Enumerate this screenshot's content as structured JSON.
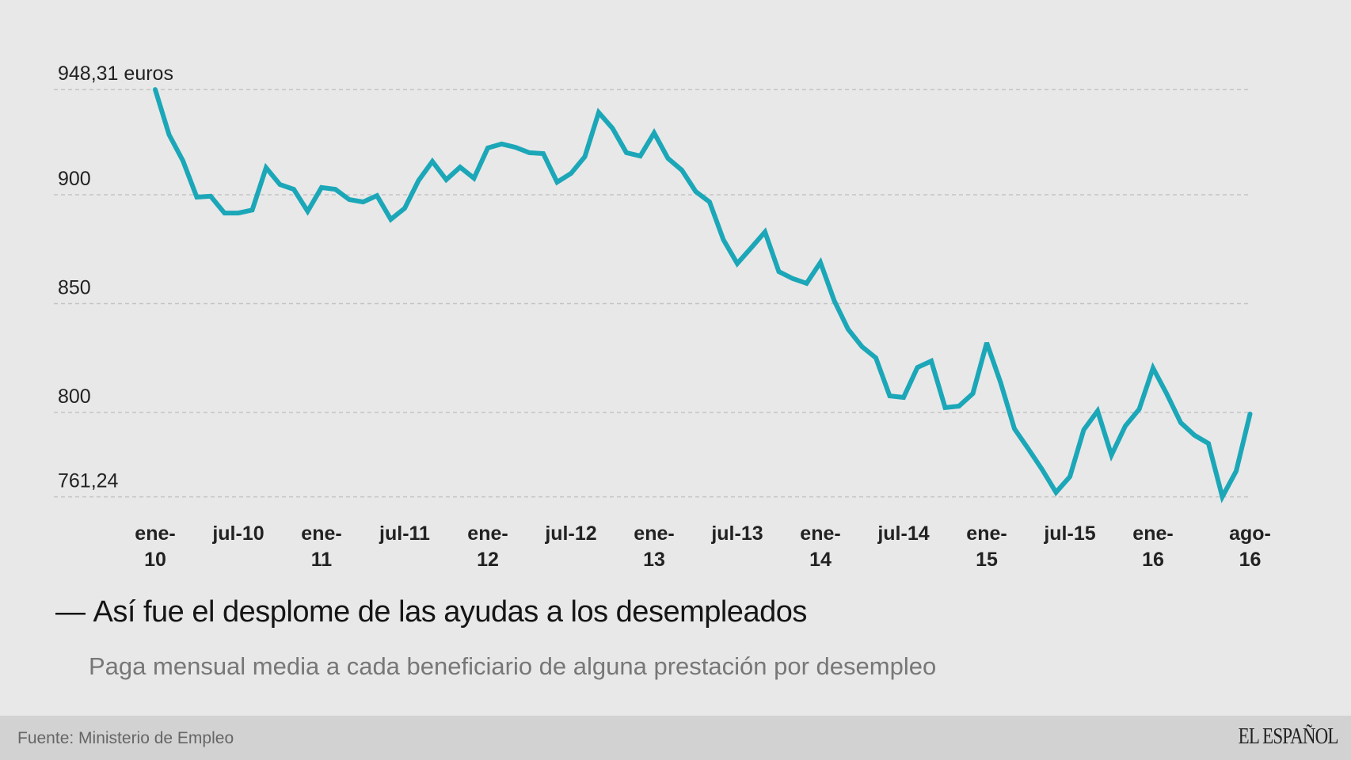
{
  "chart_data": {
    "type": "line",
    "title": "Así fue el desplome de las ayudas a los desempleados",
    "subtitle": "Paga mensual media a cada beneficiario de alguna prestación por desempleo",
    "xlabel": "",
    "ylabel": "",
    "unit": "euros",
    "ylim": [
      761.24,
      948.31
    ],
    "grid": true,
    "y_ticks": [
      {
        "value": 948.31,
        "label": "948,31 euros"
      },
      {
        "value": 900,
        "label": "900"
      },
      {
        "value": 850,
        "label": "850"
      },
      {
        "value": 800,
        "label": "800"
      },
      {
        "value": 761.24,
        "label": "761,24"
      }
    ],
    "x_start": "ene-10",
    "x_end": "ago-16",
    "x_ticks": [
      {
        "index": 0,
        "line1": "ene-",
        "line2": "10"
      },
      {
        "index": 6,
        "line1": "jul-10",
        "line2": ""
      },
      {
        "index": 12,
        "line1": "ene-",
        "line2": "11"
      },
      {
        "index": 18,
        "line1": "jul-11",
        "line2": ""
      },
      {
        "index": 24,
        "line1": "ene-",
        "line2": "12"
      },
      {
        "index": 30,
        "line1": "jul-12",
        "line2": ""
      },
      {
        "index": 36,
        "line1": "ene-",
        "line2": "13"
      },
      {
        "index": 42,
        "line1": "jul-13",
        "line2": ""
      },
      {
        "index": 48,
        "line1": "ene-",
        "line2": "14"
      },
      {
        "index": 54,
        "line1": "jul-14",
        "line2": ""
      },
      {
        "index": 60,
        "line1": "ene-",
        "line2": "15"
      },
      {
        "index": 66,
        "line1": "jul-15",
        "line2": ""
      },
      {
        "index": 72,
        "line1": "ene-",
        "line2": "16"
      },
      {
        "index": 79,
        "line1": "ago-",
        "line2": "16"
      }
    ],
    "series": [
      {
        "name": "Paga mensual media",
        "color": "#1ba7b8",
        "values": [
          948.31,
          927.6,
          915.6,
          898.9,
          899.3,
          891.6,
          891.6,
          893.0,
          912.4,
          904.7,
          902.5,
          892.4,
          903.3,
          902.5,
          897.8,
          896.7,
          899.6,
          888.7,
          893.8,
          906.5,
          915.3,
          906.9,
          912.7,
          907.6,
          921.5,
          923.3,
          921.8,
          919.3,
          918.9,
          905.8,
          909.8,
          917.5,
          937.8,
          930.5,
          919.3,
          917.8,
          928.4,
          916.7,
          911.3,
          901.5,
          896.7,
          879.3,
          868.4,
          875.6,
          882.9,
          864.7,
          861.5,
          859.3,
          868.9,
          851.3,
          838.2,
          830.2,
          825.1,
          807.6,
          806.9,
          820.7,
          823.6,
          802.2,
          802.9,
          808.7,
          832.0,
          813.8,
          792.5,
          783.3,
          773.8,
          763.3,
          770.5,
          792.0,
          800.7,
          780.4,
          793.8,
          801.5,
          820.4,
          808.4,
          795.3,
          789.5,
          785.8,
          761.24,
          773.1,
          799.3
        ]
      }
    ]
  },
  "header": {
    "title_dash": "—",
    "title": "Así fue el desplome de las ayudas a los desempleados",
    "subtitle": "Paga mensual media a cada beneficiario de alguna prestación por desempleo"
  },
  "footer": {
    "source": "Fuente: Ministerio de Empleo",
    "logo": "EL ESPAÑOL"
  }
}
